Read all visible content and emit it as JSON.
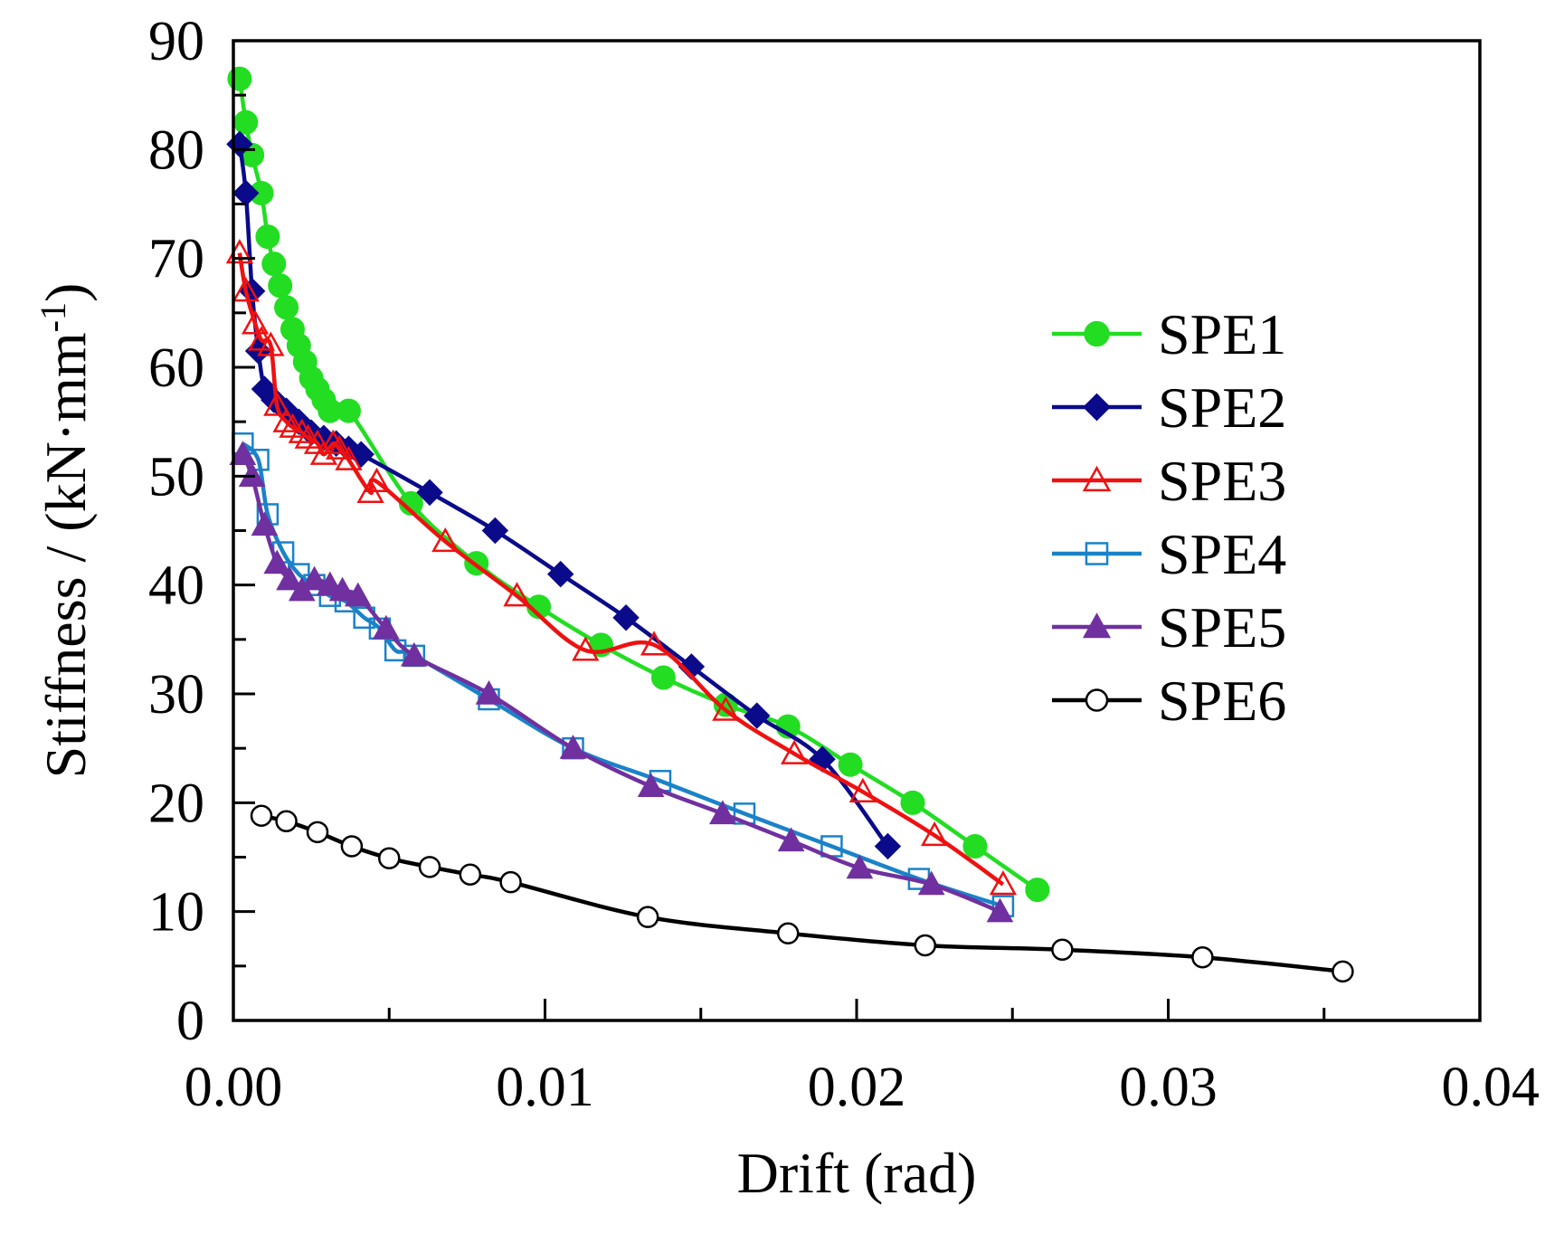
{
  "chart_data": {
    "type": "line",
    "title": "",
    "xlabel": "Drift (rad)",
    "ylabel": "Stiffness / (kN·mm",
    "ylabel_superscript": "-1",
    "ylabel_suffix": ")",
    "xlim": [
      0,
      0.04
    ],
    "ylim": [
      0,
      90
    ],
    "xticks": [
      0,
      0.01,
      0.02,
      0.03,
      0.04
    ],
    "xtick_labels": [
      "0.00",
      "0.01",
      "0.02",
      "0.03",
      "0.04"
    ],
    "yticks": [
      0,
      10,
      20,
      30,
      40,
      50,
      60,
      70,
      80,
      90
    ],
    "ytick_labels": [
      "0",
      "10",
      "20",
      "30",
      "40",
      "50",
      "60",
      "70",
      "80",
      "90"
    ],
    "grid": false,
    "legend_position": "right",
    "series": [
      {
        "name": "SPE1",
        "color": "#22dd22",
        "marker": "circle-filled",
        "x": [
          0.0002,
          0.0004,
          0.0006,
          0.0009,
          0.0011,
          0.0013,
          0.0015,
          0.0017,
          0.0019,
          0.0021,
          0.0023,
          0.0025,
          0.0027,
          0.0029,
          0.0031,
          0.0037,
          0.0057,
          0.0078,
          0.0098,
          0.0118,
          0.0138,
          0.0158,
          0.0178,
          0.0198,
          0.0218,
          0.0238,
          0.0258
        ],
        "y": [
          86.5,
          82.5,
          79.5,
          76,
          72,
          69.5,
          67.5,
          65.5,
          63.5,
          62,
          60.5,
          59,
          58,
          57,
          56,
          56,
          47.5,
          42,
          38,
          34.5,
          31.5,
          29,
          27,
          23.5,
          20,
          16,
          12
        ]
      },
      {
        "name": "SPE2",
        "color": "#0a0a8a",
        "marker": "diamond-filled",
        "x": [
          0.0002,
          0.0004,
          0.0006,
          0.0008,
          0.001,
          0.0013,
          0.0017,
          0.0021,
          0.0025,
          0.0029,
          0.0033,
          0.0037,
          0.0041,
          0.0063,
          0.0084,
          0.0105,
          0.0126,
          0.0147,
          0.0168,
          0.0189,
          0.021
        ],
        "y": [
          80.5,
          76,
          67,
          61.5,
          58,
          57,
          56,
          55,
          54,
          53.5,
          53,
          52.5,
          52,
          48.5,
          45,
          41,
          37,
          32.5,
          28,
          24,
          16
        ]
      },
      {
        "name": "SPE3",
        "color": "#ee1111",
        "marker": "triangle-open",
        "x": [
          0.0002,
          0.0004,
          0.0007,
          0.0009,
          0.0012,
          0.0014,
          0.0017,
          0.0019,
          0.0022,
          0.0024,
          0.0027,
          0.0029,
          0.0032,
          0.0034,
          0.0037,
          0.0044,
          0.0046,
          0.0068,
          0.0091,
          0.0113,
          0.0135,
          0.0158,
          0.018,
          0.0202,
          0.0225,
          0.0247
        ],
        "y": [
          70.5,
          67,
          64,
          62.5,
          62,
          56.5,
          55,
          54.5,
          54,
          53.5,
          53,
          52,
          53,
          52.5,
          51.5,
          48.5,
          49.5,
          44,
          39,
          34,
          34.5,
          28.5,
          24.5,
          21,
          17,
          12.5
        ]
      },
      {
        "name": "SPE4",
        "color": "#1a82c8",
        "marker": "square-open",
        "x": [
          0.0003,
          0.0008,
          0.0011,
          0.0016,
          0.0021,
          0.0026,
          0.0031,
          0.0036,
          0.0042,
          0.0047,
          0.0052,
          0.0058,
          0.0082,
          0.0109,
          0.0137,
          0.0164,
          0.0192,
          0.022,
          0.0247
        ],
        "y": [
          53,
          51.5,
          46.5,
          43,
          41,
          40,
          39,
          38.5,
          37,
          36,
          34,
          33.5,
          29.5,
          25,
          22,
          19,
          16,
          13,
          10.5
        ]
      },
      {
        "name": "SPE5",
        "color": "#7030a0",
        "marker": "triangle-filled",
        "x": [
          0.0003,
          0.0006,
          0.001,
          0.0014,
          0.0018,
          0.0022,
          0.0026,
          0.0031,
          0.0035,
          0.004,
          0.0049,
          0.0058,
          0.0082,
          0.0109,
          0.0134,
          0.0157,
          0.0179,
          0.0201,
          0.0224,
          0.0246
        ],
        "y": [
          52,
          50,
          45.5,
          42,
          40.5,
          39.5,
          40.5,
          40,
          39.5,
          39,
          36,
          33.5,
          30,
          25,
          21.5,
          19,
          16.5,
          14,
          12.5,
          10
        ]
      },
      {
        "name": "SPE6",
        "color": "#000000",
        "marker": "circle-open",
        "x": [
          0.0009,
          0.0017,
          0.0027,
          0.0038,
          0.005,
          0.0063,
          0.0076,
          0.0089,
          0.0133,
          0.0178,
          0.0222,
          0.0266,
          0.0311,
          0.0356
        ],
        "y": [
          18.8,
          18.3,
          17.3,
          16,
          14.9,
          14.1,
          13.4,
          12.7,
          9.5,
          8,
          6.9,
          6.5,
          5.8,
          4.5
        ]
      }
    ]
  }
}
